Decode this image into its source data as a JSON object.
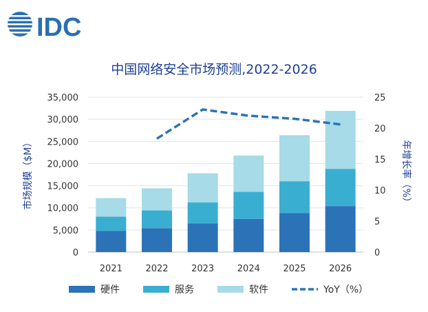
{
  "logo": {
    "text": "IDC"
  },
  "chart_data": {
    "type": "bar",
    "title": "中国网络安全市场预测,2022-2026",
    "categories": [
      "2021",
      "2022",
      "2023",
      "2024",
      "2025",
      "2026"
    ],
    "series": [
      {
        "name": "硬件",
        "values": [
          4800,
          5400,
          6500,
          7500,
          8800,
          10400
        ],
        "color": "#2b73b6"
      },
      {
        "name": "服务",
        "values": [
          3200,
          4000,
          4700,
          6100,
          7200,
          8400
        ],
        "color": "#3aaed1"
      },
      {
        "name": "软件",
        "values": [
          4200,
          5000,
          6600,
          8200,
          10400,
          13100
        ],
        "color": "#a6dbe7"
      }
    ],
    "line_series": {
      "name": "YoY（%）",
      "axis": "right",
      "values": [
        null,
        18.3,
        23.0,
        22.0,
        21.5,
        20.6
      ],
      "color": "#2b73b6"
    },
    "stacked": true,
    "ylabel": "市场规模（$M）",
    "y2label": "年增长率（%）",
    "ylim": [
      0,
      35000
    ],
    "y2lim": [
      0,
      25
    ],
    "yticks": [
      "0",
      "5,000",
      "10,000",
      "15,000",
      "20,000",
      "25,000",
      "30,000",
      "35,000"
    ],
    "y2ticks": [
      "0",
      "5",
      "10",
      "15",
      "20",
      "25"
    ],
    "grid": true,
    "legend": "bottom"
  }
}
